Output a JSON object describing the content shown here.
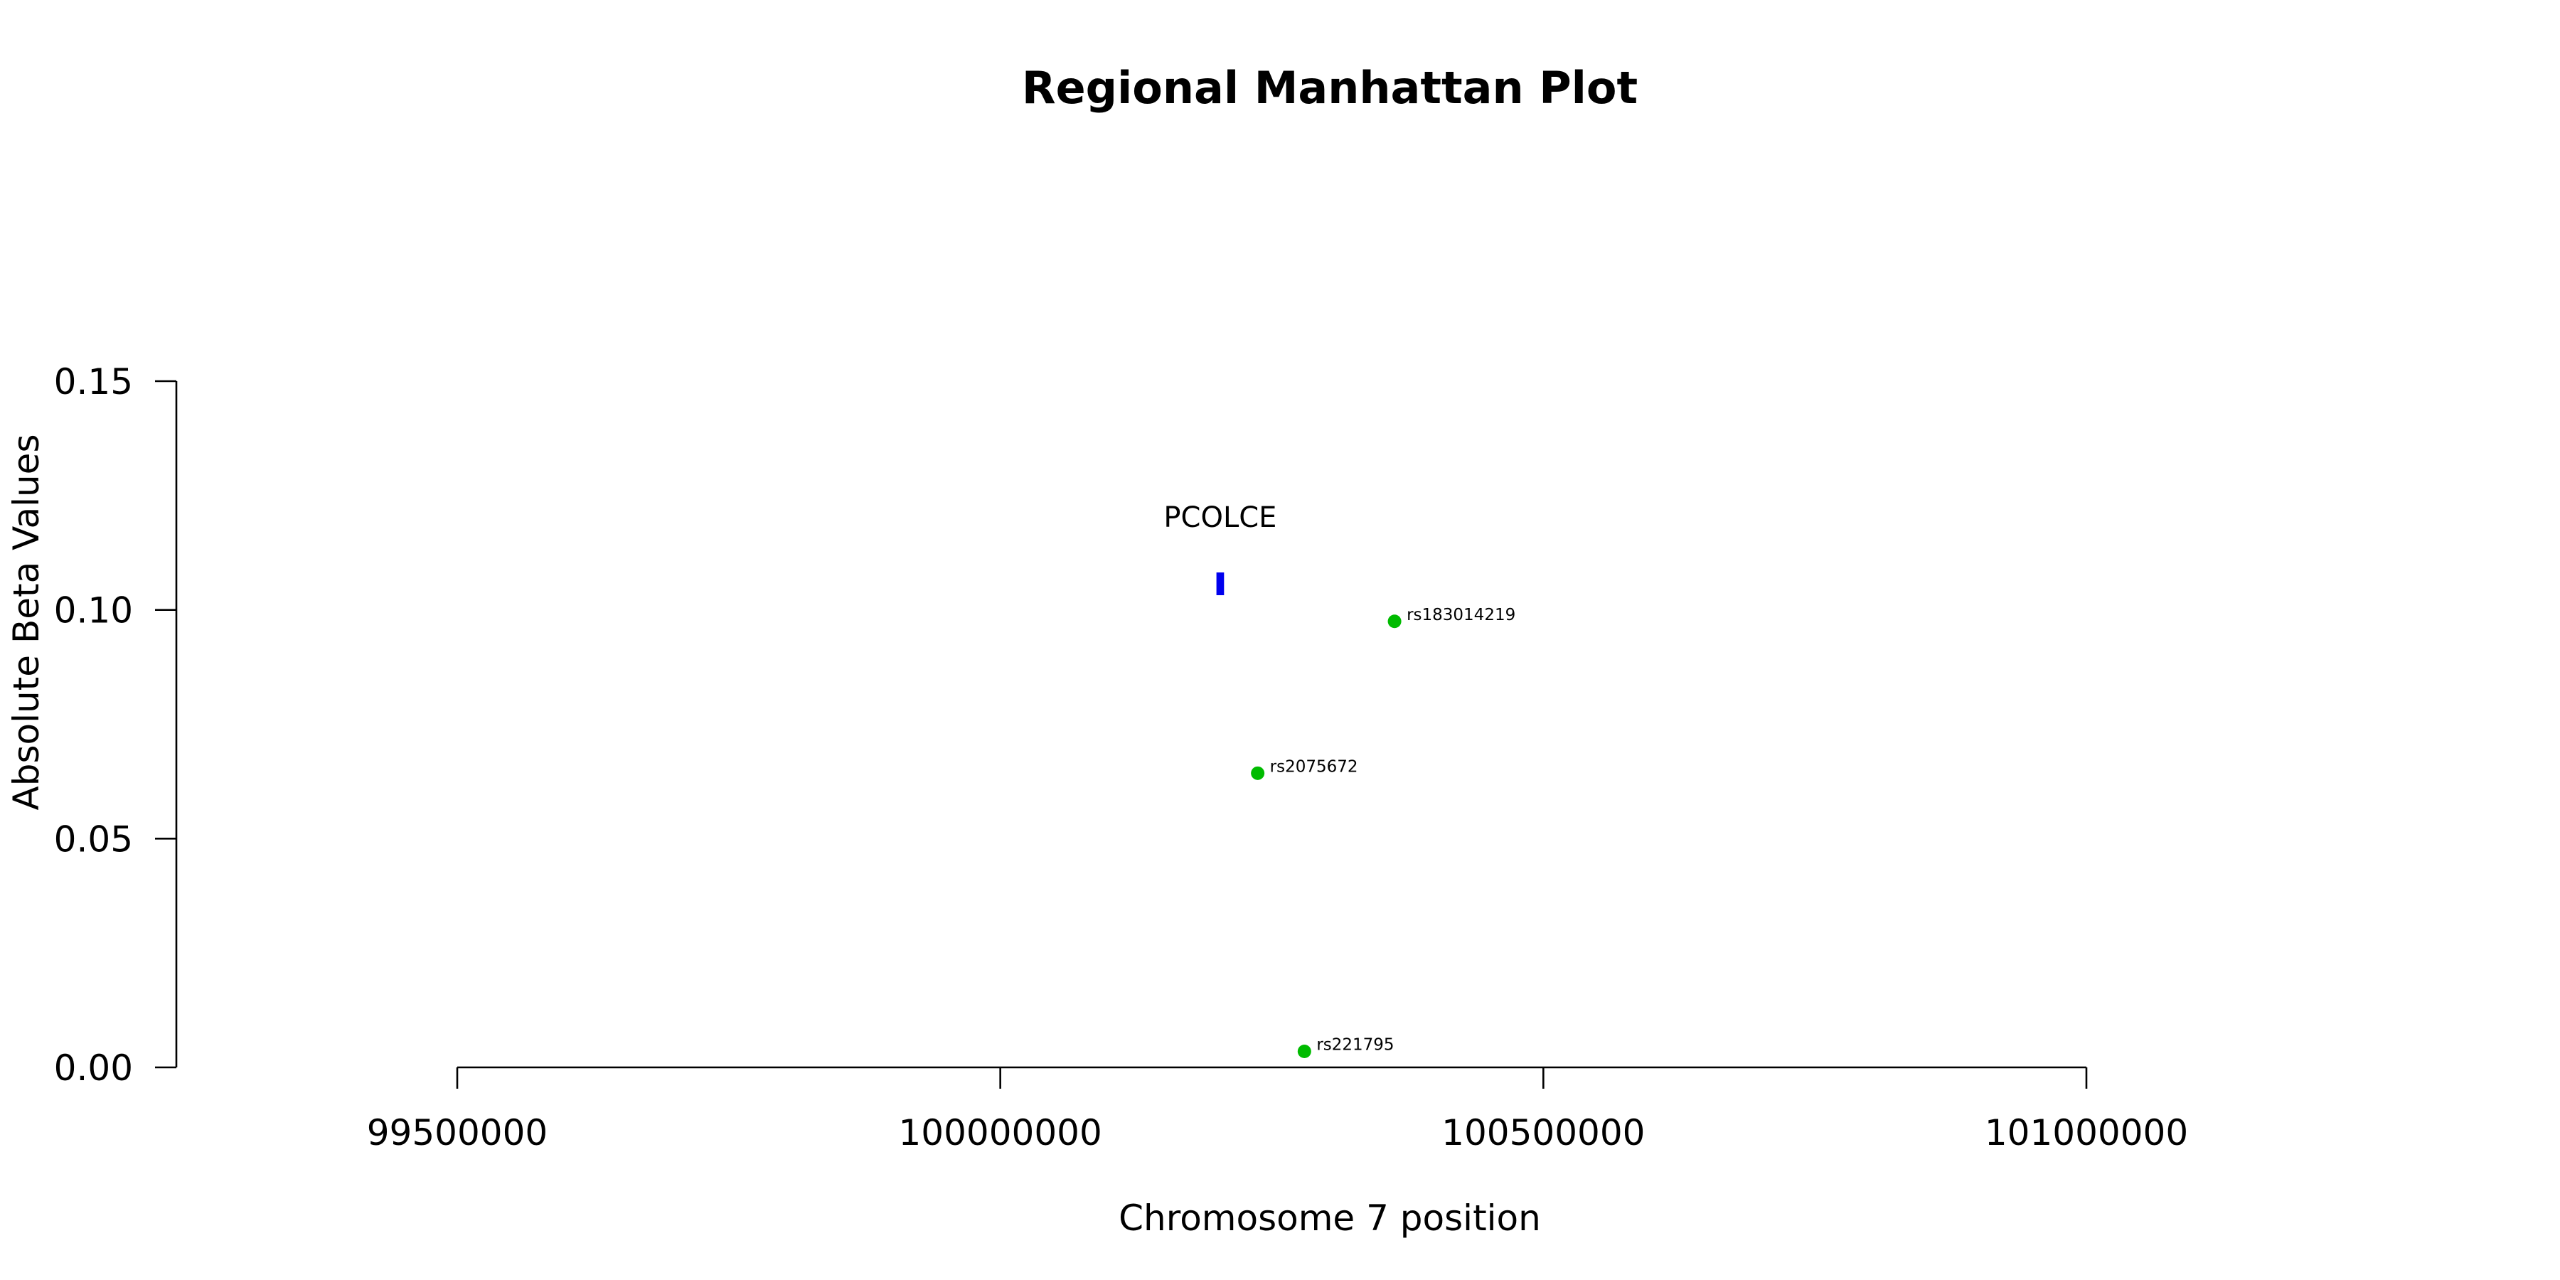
{
  "chart_data": {
    "type": "scatter",
    "title": "Regional Manhattan Plot",
    "xlabel": "Chromosome 7 position",
    "ylabel": "Absolute Beta Values",
    "xlim": [
      99240000,
      101760000
    ],
    "ylim": [
      0,
      0.15
    ],
    "x_ticks": [
      {
        "value": 99500000,
        "label": "99500000"
      },
      {
        "value": 100000000,
        "label": "100000000"
      },
      {
        "value": 100500000,
        "label": "100500000"
      },
      {
        "value": 101000000,
        "label": "101000000"
      }
    ],
    "y_ticks": [
      {
        "value": 0.0,
        "label": "0.00"
      },
      {
        "value": 0.05,
        "label": "0.05"
      },
      {
        "value": 0.1,
        "label": "0.10"
      },
      {
        "value": 0.15,
        "label": "0.15"
      }
    ],
    "points": [
      {
        "label": "rs183014219",
        "x": 100363000,
        "y": 0.0975
      },
      {
        "label": "rs2075672",
        "x": 100237000,
        "y": 0.0643
      },
      {
        "label": "rs221795",
        "x": 100280000,
        "y": 0.0035
      }
    ],
    "genes": [
      {
        "name": "PCOLCE",
        "start": 100199000,
        "end": 100206000,
        "y": 0.1057
      }
    ],
    "colors": {
      "points": "#00bb00",
      "gene": "#0000ee",
      "axis": "#000000"
    },
    "grid": false
  }
}
